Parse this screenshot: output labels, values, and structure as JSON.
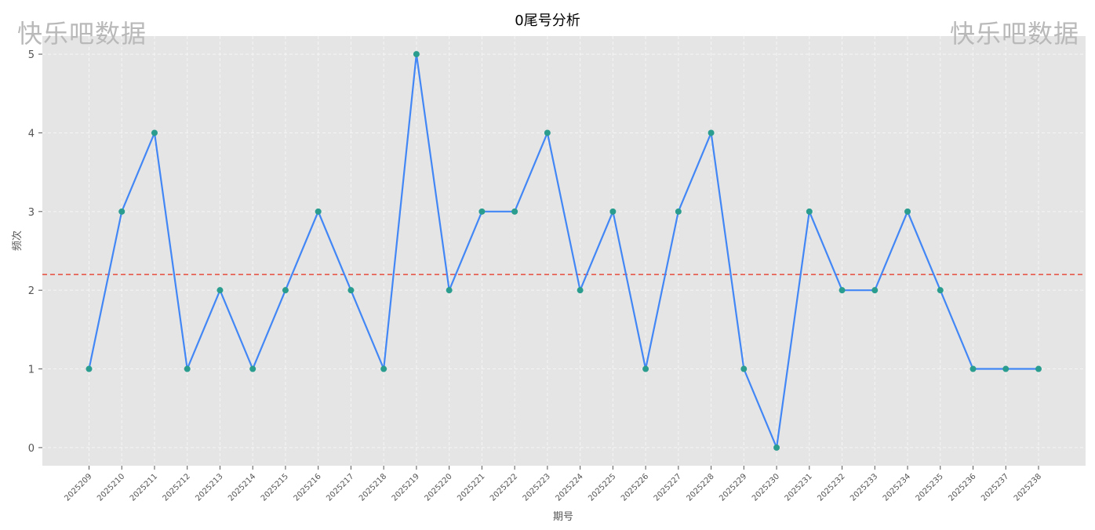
{
  "watermark": "快乐吧数据",
  "chart_data": {
    "type": "line",
    "title": "0尾号分析",
    "xlabel": "期号",
    "ylabel": "频次",
    "x": [
      "2025209",
      "2025210",
      "2025211",
      "2025212",
      "2025213",
      "2025214",
      "2025215",
      "2025216",
      "2025217",
      "2025218",
      "2025219",
      "2025220",
      "2025221",
      "2025222",
      "2025223",
      "2025224",
      "2025225",
      "2025226",
      "2025227",
      "2025228",
      "2025229",
      "2025230",
      "2025231",
      "2025232",
      "2025233",
      "2025234",
      "2025235",
      "2025236",
      "2025237",
      "2025238"
    ],
    "series": [
      {
        "values": [
          1,
          3,
          4,
          1,
          2,
          1,
          2,
          3,
          2,
          1,
          5,
          2,
          3,
          3,
          4,
          2,
          3,
          1,
          3,
          4,
          1,
          0,
          3,
          2,
          2,
          3,
          2,
          1,
          1,
          1
        ],
        "color": "#4287f5",
        "marker_color": "#2a9d8f"
      }
    ],
    "reference_line": {
      "value": 2.2,
      "color": "#e74c3c",
      "style": "dashed"
    },
    "yticks": [
      0,
      1,
      2,
      3,
      4,
      5
    ],
    "ylim": [
      -0.23,
      5.23
    ],
    "grid": true,
    "background": "#e5e5e5"
  }
}
